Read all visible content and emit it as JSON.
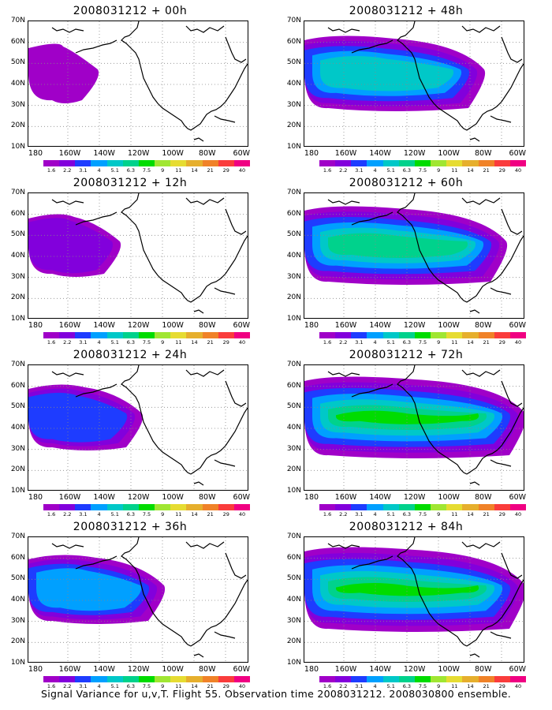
{
  "panels": [
    {
      "title": "2008031212 + 00h"
    },
    {
      "title": "2008031212 + 48h"
    },
    {
      "title": "2008031212 + 12h"
    },
    {
      "title": "2008031212 + 60h"
    },
    {
      "title": "2008031212 + 24h"
    },
    {
      "title": "2008031212 + 72h"
    },
    {
      "title": "2008031212 + 36h"
    },
    {
      "title": "2008031212 + 84h"
    }
  ],
  "lat_labels": [
    "70N",
    "60N",
    "50N",
    "40N",
    "30N",
    "20N",
    "10N"
  ],
  "lon_labels": [
    "180",
    "160W",
    "140W",
    "120W",
    "100W",
    "80W",
    "60W"
  ],
  "colorbar": {
    "labels": [
      "1.6",
      "2.2",
      "3.1",
      "4",
      "5.1",
      "6.3",
      "7.5",
      "9",
      "11",
      "14",
      "21",
      "29",
      "40"
    ],
    "colors": [
      "#a000c8",
      "#8200dc",
      "#1e3cff",
      "#00a0ff",
      "#00c8c8",
      "#00d28c",
      "#00dc00",
      "#a0e632",
      "#e6dc32",
      "#e6af2d",
      "#f08228",
      "#fa3c3c",
      "#f00082"
    ]
  },
  "footer": "Signal Variance for u,v,T. Flight 55. Observation time 2008031212. 2008030800 ensemble."
}
